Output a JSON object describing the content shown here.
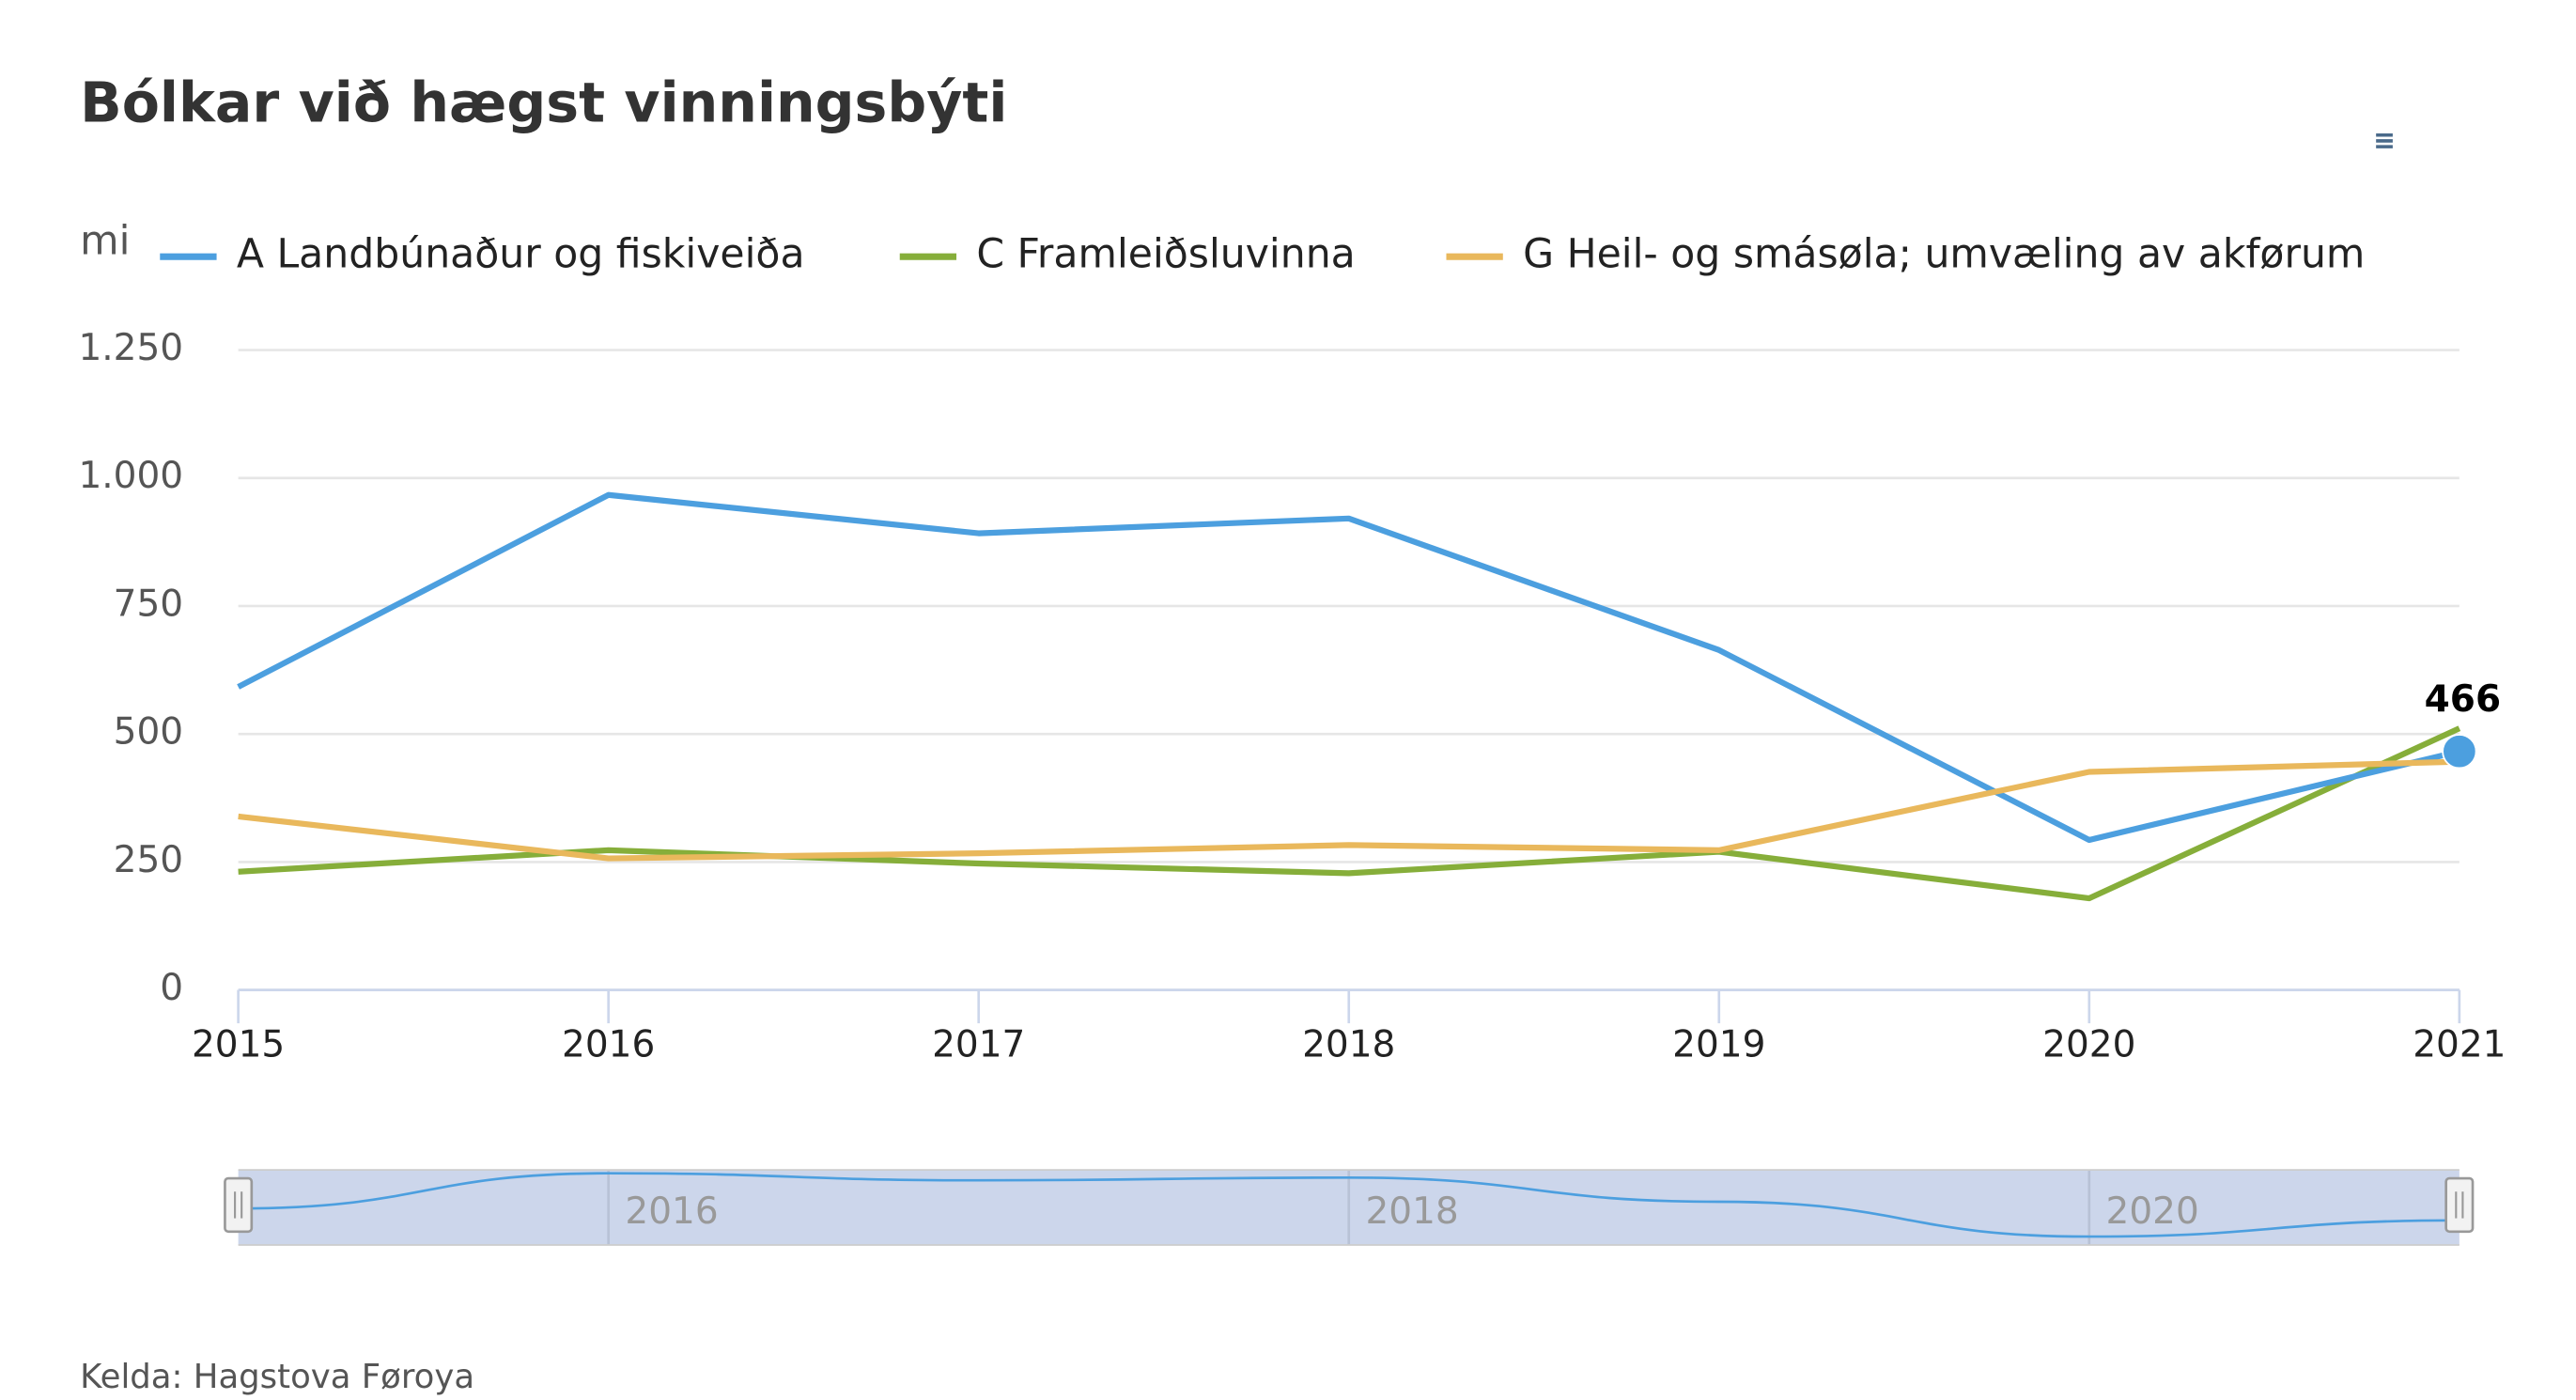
{
  "chart_data": {
    "type": "line",
    "title": "Bólkar við hægst vinningsbýti",
    "y_label": "mi",
    "credit": "Kelda: Hagstova Føroya",
    "x": [
      2015,
      2016,
      2017,
      2018,
      2019,
      2020,
      2021
    ],
    "xlim": [
      2015,
      2021
    ],
    "xticks": [
      2015,
      2016,
      2017,
      2018,
      2019,
      2020,
      2021
    ],
    "ylim": [
      0,
      1250
    ],
    "yticks": [
      0,
      250,
      500,
      750,
      {
        "value": 1000,
        "label": "1.000"
      },
      {
        "value": 1250,
        "label": "1.250"
      }
    ],
    "grid": true,
    "legend": "top",
    "navigator_xticks": [
      2016,
      2018,
      2020
    ],
    "series": [
      {
        "name": "A Landbúnaður og fiskiveiða",
        "color": "#4c9fdf",
        "values": [
          592,
          967,
          892,
          921,
          664,
          293,
          466
        ]
      },
      {
        "name": "C Framleiðsluvinna",
        "color": "#86ae3a",
        "values": [
          231,
          273,
          247,
          228,
          270,
          179,
          511
        ]
      },
      {
        "name": "G Heil- og smásøla; umvæling av akførum",
        "color": "#e9b85c",
        "values": [
          339,
          257,
          267,
          283,
          273,
          426,
          446
        ]
      }
    ]
  }
}
